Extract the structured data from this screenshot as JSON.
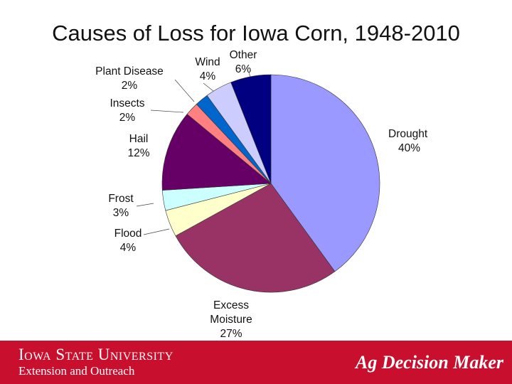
{
  "chart_data": {
    "type": "pie",
    "title": "Causes of Loss for Iowa Corn, 1948-2010",
    "slices": [
      {
        "name": "Drought",
        "value": 40,
        "label": "40%",
        "color": "#9999ff"
      },
      {
        "name": "Excess Moisture",
        "value": 27,
        "label": "27%",
        "color": "#993366"
      },
      {
        "name": "Flood",
        "value": 4,
        "label": "4%",
        "color": "#ffffcc"
      },
      {
        "name": "Frost",
        "value": 3,
        "label": "3%",
        "color": "#ccffff"
      },
      {
        "name": "Hail",
        "value": 12,
        "label": "12%",
        "color": "#660066"
      },
      {
        "name": "Insects",
        "value": 2,
        "label": "2%",
        "color": "#ff8080"
      },
      {
        "name": "Plant Disease",
        "value": 2,
        "label": "2%",
        "color": "#0066cc"
      },
      {
        "name": "Wind",
        "value": 4,
        "label": "4%",
        "color": "#ccccff"
      },
      {
        "name": "Other",
        "value": 6,
        "label": "6%",
        "color": "#000080"
      }
    ]
  },
  "footer": {
    "university": "Iowa State University",
    "extension": "Extension and Outreach",
    "brand": "Ag Decision Maker",
    "background": "#c8102e"
  }
}
